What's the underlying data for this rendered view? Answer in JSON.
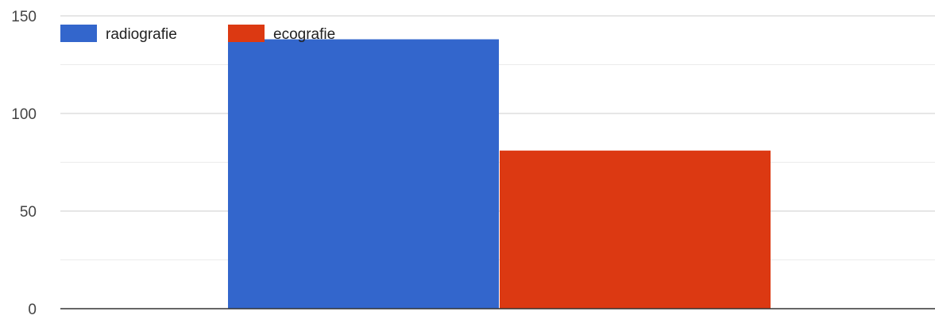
{
  "chart_data": {
    "type": "bar",
    "categories": [
      ""
    ],
    "series": [
      {
        "name": "radiografie",
        "values": [
          138
        ],
        "color": "#3366cc"
      },
      {
        "name": "ecografie",
        "values": [
          81
        ],
        "color": "#dc3912"
      }
    ],
    "ylim": [
      0,
      150
    ],
    "yticks": [
      "0",
      "50",
      "100",
      "150"
    ],
    "grid": true,
    "legend": "top-left"
  }
}
